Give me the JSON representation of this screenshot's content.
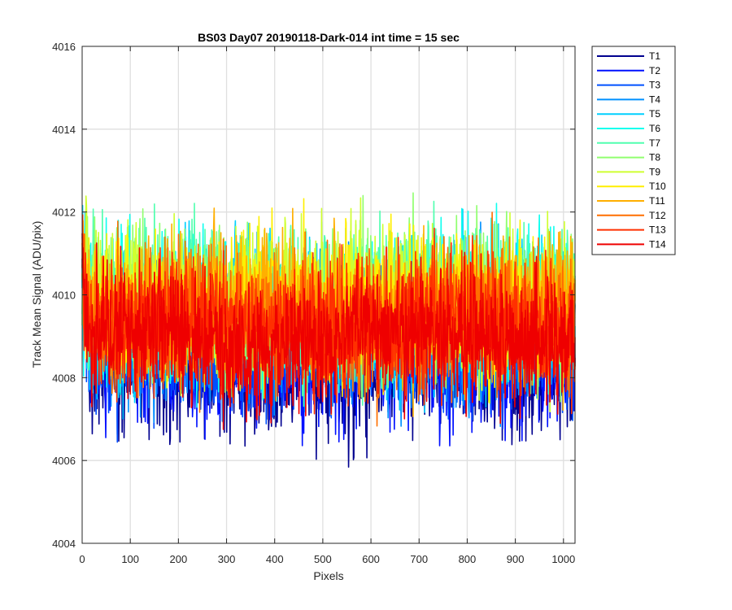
{
  "chart_data": {
    "type": "line",
    "title": "BS03 Day07 20190118-Dark-014 int time = 15 sec",
    "xlabel": "Pixels",
    "ylabel": "Track Mean Signal (ADU/pix)",
    "xlim": [
      0,
      1024
    ],
    "ylim": [
      4004,
      4016
    ],
    "xticks": [
      0,
      100,
      200,
      300,
      400,
      500,
      600,
      700,
      800,
      900,
      1000
    ],
    "yticks": [
      4004,
      4006,
      4008,
      4010,
      4012,
      4014,
      4016
    ],
    "grid": true,
    "legend_position": "outside-top-right",
    "n_points": 1024,
    "series": [
      {
        "name": "T1",
        "color": "#00008f",
        "mean": 4008.3,
        "spread": 2.3
      },
      {
        "name": "T2",
        "color": "#0010ff",
        "mean": 4008.6,
        "spread": 2.2
      },
      {
        "name": "T3",
        "color": "#0050ff",
        "mean": 4008.9,
        "spread": 2.2
      },
      {
        "name": "T4",
        "color": "#0090ff",
        "mean": 4009.2,
        "spread": 2.3
      },
      {
        "name": "T5",
        "color": "#00d0ff",
        "mean": 4009.5,
        "spread": 2.3
      },
      {
        "name": "T6",
        "color": "#10ffef",
        "mean": 4009.7,
        "spread": 2.4
      },
      {
        "name": "T7",
        "color": "#50ffaf",
        "mean": 4009.8,
        "spread": 2.4
      },
      {
        "name": "T8",
        "color": "#90ff6f",
        "mean": 4009.8,
        "spread": 2.3
      },
      {
        "name": "T9",
        "color": "#cfff30",
        "mean": 4009.8,
        "spread": 2.3
      },
      {
        "name": "T10",
        "color": "#ffef00",
        "mean": 4009.7,
        "spread": 2.3
      },
      {
        "name": "T11",
        "color": "#ffaf00",
        "mean": 4009.6,
        "spread": 2.2
      },
      {
        "name": "T12",
        "color": "#ff6f00",
        "mean": 4009.4,
        "spread": 2.2
      },
      {
        "name": "T13",
        "color": "#ff3000",
        "mean": 4009.2,
        "spread": 2.1
      },
      {
        "name": "T14",
        "color": "#ef0000",
        "mean": 4009.0,
        "spread": 2.0
      }
    ]
  }
}
